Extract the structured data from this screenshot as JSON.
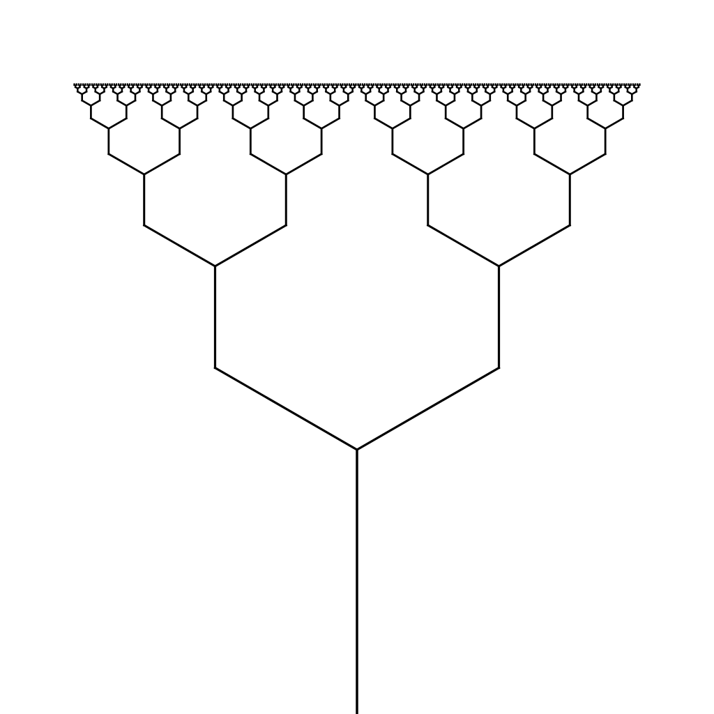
{
  "figure": {
    "kind": "fractal-tree",
    "style": "binary branching, 60 degree split, line drawing",
    "colors": {
      "background": "#ffffff",
      "stroke": "#000000"
    },
    "branching": {
      "angle_degrees": 60,
      "length_ratio": 0.5,
      "levels": 9
    }
  }
}
